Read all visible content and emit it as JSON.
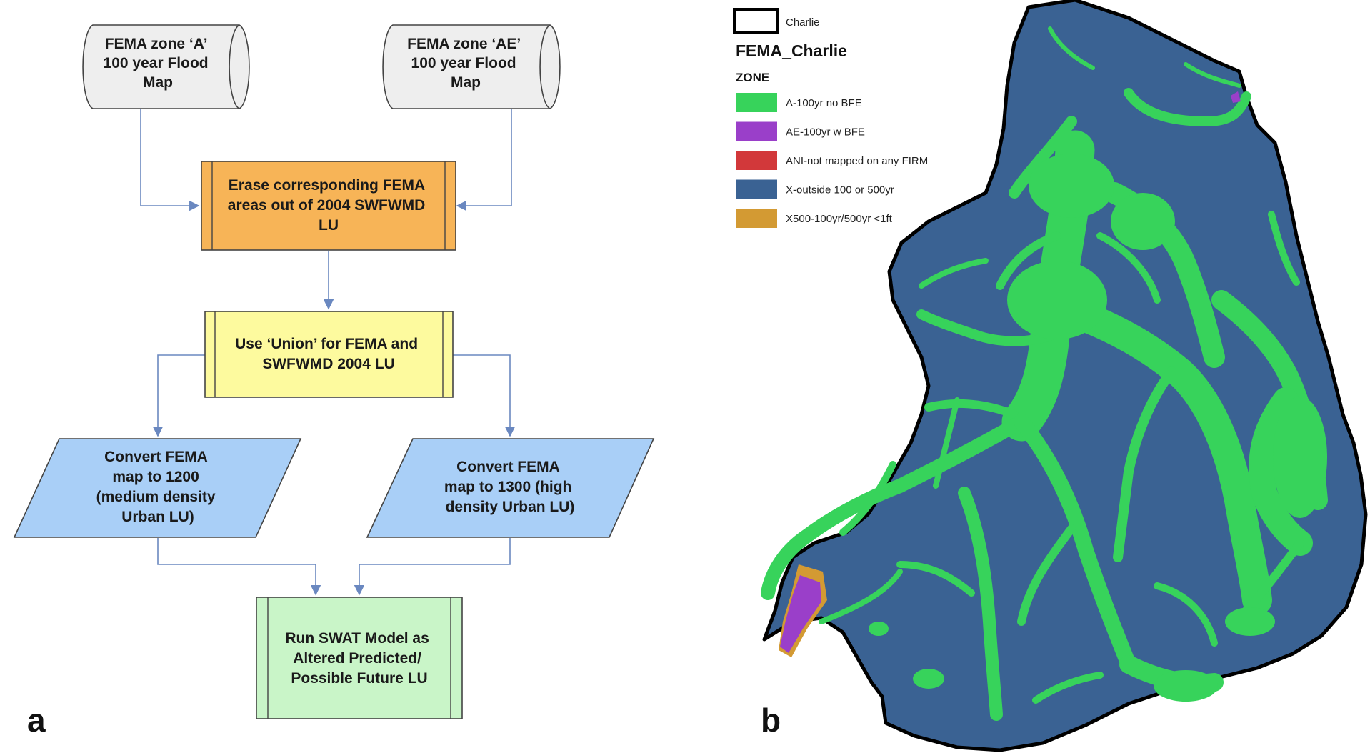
{
  "panel_a": {
    "label": "a",
    "nodes": {
      "zone_a": [
        "FEMA zone ‘A’",
        "100 year Flood",
        "Map"
      ],
      "zone_ae": [
        "FEMA zone ‘AE’",
        "100 year Flood",
        "Map"
      ],
      "erase": [
        "Erase corresponding FEMA",
        "areas out of 2004 SWFWMD",
        "LU"
      ],
      "union": [
        "Use ‘Union’ for FEMA and",
        "SWFWMD 2004 LU"
      ],
      "convert_1200": [
        "Convert FEMA",
        "map to 1200",
        "(medium density",
        "Urban LU)"
      ],
      "convert_1300": [
        "Convert FEMA",
        "map to 1300 (high",
        "density Urban LU)"
      ],
      "run_swat": [
        "Run SWAT Model as",
        "Altered Predicted/",
        "Possible Future LU"
      ]
    },
    "colors": {
      "cylinder": "#eeeeee",
      "erase": "#f7b457",
      "union": "#fdfa9e",
      "convert": "#a9cff7",
      "run_swat": "#c9f5c8",
      "arrow": "#6a88c0"
    }
  },
  "panel_b": {
    "label": "b",
    "legend": {
      "boundary_label": "Charlie",
      "layer_title": "FEMA_Charlie",
      "field_title": "ZONE",
      "items": [
        {
          "label": "A-100yr no BFE",
          "color": "#37d35b"
        },
        {
          "label": "AE-100yr w BFE",
          "color": "#9a3fc9"
        },
        {
          "label": "ANI-not mapped on any FIRM",
          "color": "#d2383a"
        },
        {
          "label": "X-outside 100 or 500yr",
          "color": "#3a6293"
        },
        {
          "label": "X500-100yr/500yr <1ft",
          "color": "#d39a33"
        }
      ]
    }
  }
}
